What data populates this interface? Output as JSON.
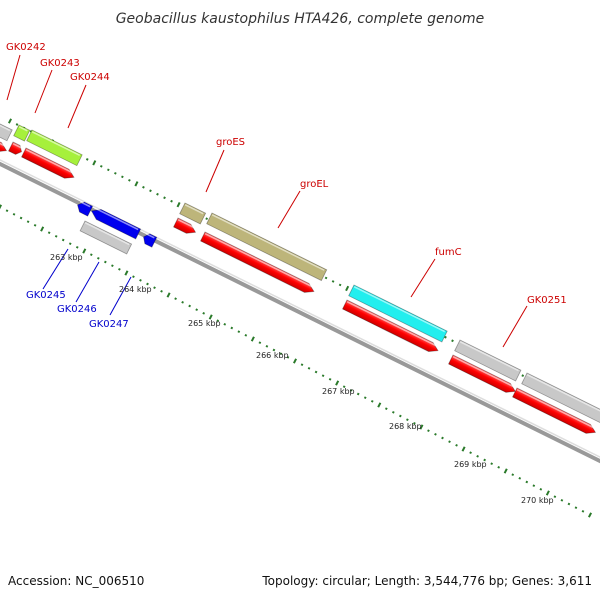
{
  "title": "Geobacillus kaustophilus HTA426, complete genome",
  "footer": {
    "accession": "Accession: NC_006510",
    "summary": "Topology: circular; Length: 3,544,776 bp; Genes: 3,611"
  },
  "colors": {
    "forward_label": "#cc0000",
    "reverse_label": "#0000cc",
    "tick": "#2a7a2a",
    "cds": "#ff0000",
    "backbone": "#888888"
  },
  "kbp_ticks": [
    {
      "label": "263 kbp",
      "kbp": 263
    },
    {
      "label": "264 kbp",
      "kbp": 264
    },
    {
      "label": "265 kbp",
      "kbp": 265
    },
    {
      "label": "266 kbp",
      "kbp": 266
    },
    {
      "label": "267 kbp",
      "kbp": 267
    },
    {
      "label": "268 kbp",
      "kbp": 268
    },
    {
      "label": "269 kbp",
      "kbp": 269
    },
    {
      "label": "270 kbp",
      "kbp": 270
    }
  ],
  "forward_genes": [
    {
      "label": "GK0242",
      "color": "#c8c8c8"
    },
    {
      "label": "GK0243",
      "color": "#a6f03c"
    },
    {
      "label": "GK0244",
      "color": "#a6f03c"
    },
    {
      "label": "groES",
      "color": "#bdb57a"
    },
    {
      "label": "groEL",
      "color": "#bdb57a"
    },
    {
      "label": "fumC",
      "color": "#22eeee"
    },
    {
      "label": "GK0251",
      "color": "#c8c8c8"
    }
  ],
  "reverse_genes": [
    {
      "label": "GK0245",
      "color": "#0000ee"
    },
    {
      "label": "GK0246",
      "color": "#0000ee"
    },
    {
      "label": "GK0247",
      "color": "#c8c8c8"
    }
  ]
}
